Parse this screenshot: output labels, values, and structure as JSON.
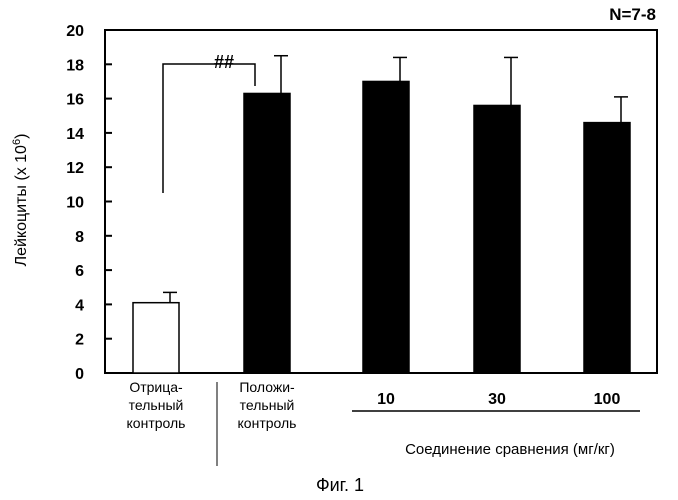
{
  "chart_data": {
    "type": "bar",
    "categories": [
      "Отрица-|тельный|контроль",
      "Положи-|тельный|контроль",
      "10",
      "30",
      "100"
    ],
    "values": [
      4.1,
      16.3,
      17.0,
      15.6,
      14.6
    ],
    "errors": [
      0.6,
      2.2,
      1.4,
      2.8,
      1.5
    ],
    "bar_colors": [
      "#ffffff",
      "#000000",
      "#000000",
      "#000000",
      "#000000"
    ],
    "ylabel": "Лейкоциты (x 10",
    "ylabel_exp": "6",
    "ylabel_close": ")",
    "ylim": [
      0,
      20
    ],
    "yticks": [
      "0",
      "2",
      "4",
      "6",
      "8",
      "10",
      "12",
      "14",
      "16",
      "18",
      "20"
    ],
    "annotation": "N=7-8",
    "group_label": "Соединение сравнения (мг/кг)",
    "significance": "##",
    "caption": "Фиг. 1"
  }
}
